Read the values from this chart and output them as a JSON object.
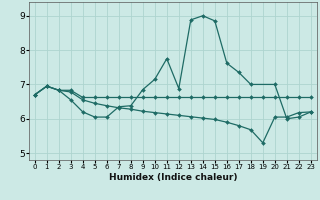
{
  "xlabel": "Humidex (Indice chaleur)",
  "xlim": [
    -0.5,
    23.5
  ],
  "ylim": [
    4.8,
    9.4
  ],
  "xticks": [
    0,
    1,
    2,
    3,
    4,
    5,
    6,
    7,
    8,
    9,
    10,
    11,
    12,
    13,
    14,
    15,
    16,
    17,
    18,
    19,
    20,
    21,
    22,
    23
  ],
  "yticks": [
    5,
    6,
    7,
    8,
    9
  ],
  "background_color": "#cce9e5",
  "grid_color": "#aed4cf",
  "line_color": "#1e6b65",
  "line1_x": [
    0,
    1,
    2,
    3,
    4,
    5,
    6,
    7,
    8,
    9,
    10,
    11,
    12,
    13,
    14,
    15,
    16,
    17,
    18,
    20,
    21,
    22,
    23
  ],
  "line1_y": [
    6.7,
    6.95,
    6.83,
    6.55,
    6.2,
    6.05,
    6.05,
    6.35,
    6.38,
    6.85,
    7.15,
    7.75,
    6.88,
    8.88,
    9.0,
    8.85,
    7.62,
    7.35,
    7.0,
    7.0,
    6.0,
    6.05,
    6.2
  ],
  "line2_x": [
    0,
    1,
    2,
    3,
    4,
    5,
    6,
    7,
    8,
    9,
    10,
    11,
    12,
    13,
    14,
    15,
    16,
    17,
    18,
    19,
    20,
    21,
    22,
    23
  ],
  "line2_y": [
    6.7,
    6.95,
    6.83,
    6.78,
    6.55,
    6.45,
    6.38,
    6.32,
    6.28,
    6.22,
    6.18,
    6.14,
    6.1,
    6.06,
    6.02,
    5.98,
    5.9,
    5.8,
    5.68,
    5.3,
    6.05,
    6.05,
    6.18,
    6.2
  ],
  "line3_x": [
    0,
    1,
    2,
    3,
    4,
    5,
    6,
    7,
    8,
    9,
    10,
    11,
    12,
    13,
    14,
    15,
    16,
    17,
    18,
    19,
    20,
    21,
    22,
    23
  ],
  "line3_y": [
    6.7,
    6.95,
    6.83,
    6.83,
    6.62,
    6.62,
    6.62,
    6.62,
    6.62,
    6.62,
    6.62,
    6.62,
    6.62,
    6.62,
    6.62,
    6.62,
    6.62,
    6.62,
    6.62,
    6.62,
    6.62,
    6.62,
    6.62,
    6.62
  ]
}
